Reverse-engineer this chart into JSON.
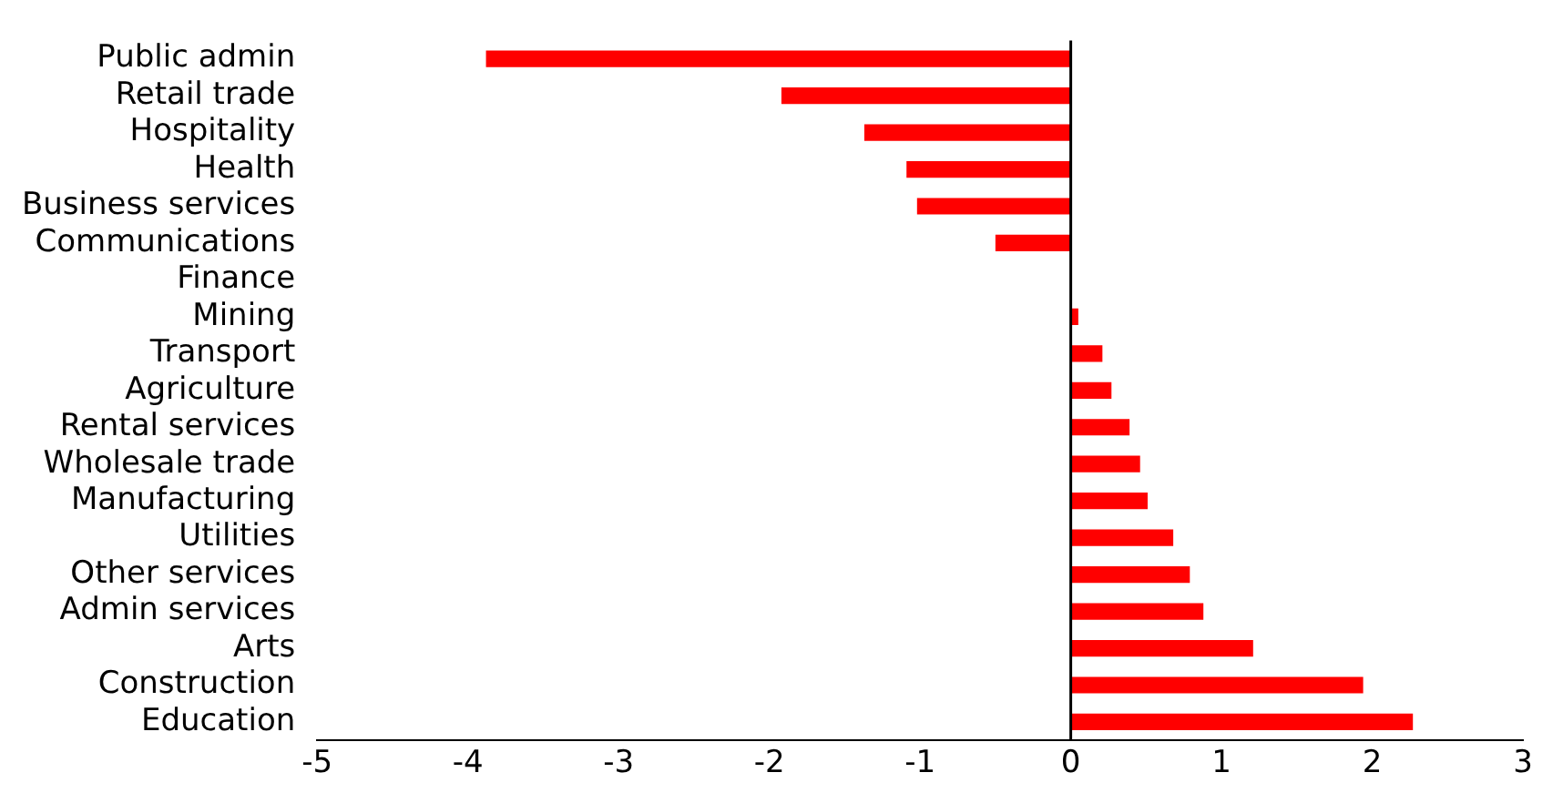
{
  "chart_data": {
    "type": "bar",
    "orientation": "horizontal",
    "categories": [
      "Public admin",
      "Retail trade",
      "Hospitality",
      "Health",
      "Business services",
      "Communications",
      "Finance",
      "Mining",
      "Transport",
      "Agriculture",
      "Rental services",
      "Wholesale trade",
      "Manufacturing",
      "Utilities",
      "Other services",
      "Admin services",
      "Arts",
      "Construction",
      "Education"
    ],
    "values": [
      -3.88,
      -1.92,
      -1.37,
      -1.09,
      -1.02,
      -0.5,
      0,
      0.05,
      0.21,
      0.27,
      0.39,
      0.46,
      0.51,
      0.68,
      0.79,
      0.88,
      1.21,
      1.94,
      2.27
    ],
    "color": "#ff0000",
    "xlim": [
      -5,
      3
    ],
    "xticks": [
      -5,
      -4,
      -3,
      -2,
      -1,
      0,
      1,
      2,
      3
    ],
    "grid": false,
    "ref_lines": [
      {
        "axis": "x",
        "value": 0,
        "color": "#000000"
      }
    ],
    "legend": false
  }
}
